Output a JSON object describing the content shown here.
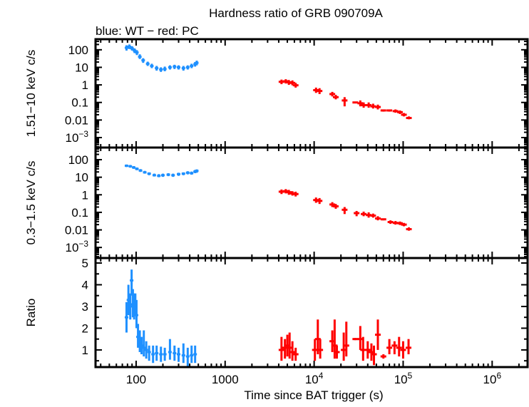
{
  "chart_data": {
    "type": "scatter",
    "title": "Hardness ratio of GRB 090709A",
    "subtitle": "blue: WT − red: PC",
    "xlabel": "Time since BAT trigger (s)",
    "x_scale": "log",
    "xlim": [
      35,
      2500000
    ],
    "x_ticks": [
      {
        "value": 100,
        "label": "100"
      },
      {
        "value": 1000,
        "label": "1000"
      },
      {
        "value": 10000,
        "label": "10",
        "exp": "4"
      },
      {
        "value": 100000,
        "label": "10",
        "exp": "5"
      },
      {
        "value": 1000000,
        "label": "10",
        "exp": "6"
      }
    ],
    "colors": {
      "WT": "#1e90ff",
      "PC": "#ff0000"
    },
    "grid": false,
    "panels": [
      {
        "ylabel": "1.51−10 keV c/s",
        "y_scale": "log",
        "ylim": [
          0.00027,
          400
        ],
        "y_ticks": [
          {
            "value": 100,
            "label": "100"
          },
          {
            "value": 10,
            "label": "10"
          },
          {
            "value": 1,
            "label": "1"
          },
          {
            "value": 0.1,
            "label": "0.1"
          },
          {
            "value": 0.01,
            "label": "0.01"
          },
          {
            "value": 0.001,
            "label": "10",
            "exp": "−3"
          }
        ],
        "series": [
          {
            "mode": "WT",
            "points": [
              [
                78,
                130,
                90,
                180
              ],
              [
                84,
                150,
                110,
                200
              ],
              [
                90,
                120,
                90,
                160
              ],
              [
                96,
                90,
                65,
                120
              ],
              [
                102,
                70,
                50,
                95
              ],
              [
                110,
                40,
                30,
                55
              ],
              [
                120,
                25,
                18,
                33
              ],
              [
                135,
                16,
                12,
                21
              ],
              [
                150,
                12,
                9,
                16
              ],
              [
                170,
                9,
                6.5,
                12
              ],
              [
                190,
                7.5,
                5.5,
                10
              ],
              [
                210,
                8,
                6,
                11
              ],
              [
                240,
                10,
                7.5,
                13
              ],
              [
                270,
                11,
                8,
                14
              ],
              [
                300,
                10,
                7.5,
                13
              ],
              [
                340,
                9,
                6.5,
                12
              ],
              [
                380,
                10,
                7.5,
                13
              ],
              [
                420,
                12,
                9,
                16
              ],
              [
                460,
                15,
                11,
                20
              ],
              [
                480,
                18,
                13,
                24
              ]
            ]
          },
          {
            "mode": "PC",
            "points": [
              [
                4300,
                1.5,
                1.1,
                2.0
              ],
              [
                4800,
                1.6,
                1.2,
                2.1
              ],
              [
                5200,
                1.4,
                1.0,
                1.9
              ],
              [
                5700,
                1.3,
                0.95,
                1.8
              ],
              [
                6200,
                0.95,
                0.7,
                1.3
              ],
              [
                10500,
                0.5,
                0.35,
                0.7
              ],
              [
                11500,
                0.45,
                0.3,
                0.65
              ],
              [
                16000,
                0.3,
                0.22,
                0.4
              ],
              [
                17500,
                0.2,
                0.15,
                0.27
              ],
              [
                22000,
                0.13,
                0.06,
                0.2
              ],
              [
                29000,
                0.1,
                0.09,
                0.11
              ],
              [
                33000,
                0.09,
                0.06,
                0.13
              ],
              [
                36000,
                0.07,
                0.05,
                0.1
              ],
              [
                41000,
                0.07,
                0.05,
                0.1
              ],
              [
                46000,
                0.06,
                0.045,
                0.085
              ],
              [
                52000,
                0.055,
                0.04,
                0.075
              ],
              [
                60000,
                0.035,
                0.03,
                0.04
              ],
              [
                70000,
                0.035,
                0.03,
                0.04
              ],
              [
                82000,
                0.032,
                0.026,
                0.04
              ],
              [
                92000,
                0.028,
                0.022,
                0.035
              ],
              [
                102000,
                0.02,
                0.016,
                0.025
              ],
              [
                116000,
                0.013,
                0.011,
                0.016
              ]
            ]
          }
        ]
      },
      {
        "ylabel": "0.3−1.5 keV c/s",
        "y_scale": "log",
        "ylim": [
          0.00025,
          490
        ],
        "y_ticks": [
          {
            "value": 100,
            "label": "100"
          },
          {
            "value": 10,
            "label": "10"
          },
          {
            "value": 1,
            "label": "1"
          },
          {
            "value": 0.1,
            "label": "0.1"
          },
          {
            "value": 0.01,
            "label": "0.01"
          },
          {
            "value": 0.001,
            "label": "10",
            "exp": "−3"
          }
        ],
        "series": [
          {
            "mode": "WT",
            "points": [
              [
                78,
                45,
                38,
                53
              ],
              [
                86,
                42,
                35,
                50
              ],
              [
                94,
                36,
                30,
                43
              ],
              [
                102,
                30,
                25,
                36
              ],
              [
                112,
                24,
                20,
                29
              ],
              [
                125,
                19,
                16,
                23
              ],
              [
                140,
                16,
                13,
                19
              ],
              [
                160,
                13,
                11,
                16
              ],
              [
                180,
                12,
                10,
                15
              ],
              [
                200,
                13,
                10.5,
                16
              ],
              [
                230,
                14,
                11.5,
                17
              ],
              [
                260,
                13,
                10.5,
                16
              ],
              [
                300,
                15,
                12,
                18
              ],
              [
                340,
                16,
                13,
                19
              ],
              [
                380,
                18,
                14.5,
                22
              ],
              [
                420,
                17,
                14,
                21
              ],
              [
                460,
                21,
                17,
                26
              ],
              [
                480,
                23,
                18,
                28
              ]
            ]
          },
          {
            "mode": "PC",
            "points": [
              [
                4300,
                1.5,
                1.1,
                2.0
              ],
              [
                4800,
                1.6,
                1.2,
                2.1
              ],
              [
                5200,
                1.4,
                1.0,
                1.9
              ],
              [
                5700,
                1.2,
                0.9,
                1.6
              ],
              [
                6200,
                1.1,
                0.8,
                1.5
              ],
              [
                10500,
                0.5,
                0.35,
                0.7
              ],
              [
                11500,
                0.45,
                0.3,
                0.65
              ],
              [
                16000,
                0.28,
                0.2,
                0.38
              ],
              [
                17500,
                0.22,
                0.16,
                0.3
              ],
              [
                22000,
                0.14,
                0.08,
                0.2
              ],
              [
                30000,
                0.09,
                0.06,
                0.12
              ],
              [
                36000,
                0.08,
                0.06,
                0.11
              ],
              [
                41000,
                0.07,
                0.05,
                0.1
              ],
              [
                46000,
                0.065,
                0.05,
                0.085
              ],
              [
                52000,
                0.045,
                0.035,
                0.06
              ],
              [
                60000,
                0.04,
                0.035,
                0.045
              ],
              [
                72000,
                0.028,
                0.022,
                0.035
              ],
              [
                82000,
                0.025,
                0.02,
                0.032
              ],
              [
                92000,
                0.024,
                0.019,
                0.03
              ],
              [
                102000,
                0.02,
                0.016,
                0.025
              ],
              [
                116000,
                0.011,
                0.009,
                0.014
              ]
            ]
          }
        ]
      },
      {
        "ylabel": "Ratio",
        "y_scale": "linear",
        "ylim": [
          0.21,
          5.23
        ],
        "y_ticks": [
          {
            "value": 5,
            "label": "5"
          },
          {
            "value": 4,
            "label": "4"
          },
          {
            "value": 3,
            "label": "3"
          },
          {
            "value": 2,
            "label": "2"
          },
          {
            "value": 1,
            "label": "1"
          }
        ],
        "series": [
          {
            "mode": "WT",
            "points": [
              [
                78,
                2.5,
                1.8,
                3.2
              ],
              [
                82,
                3.3,
                2.6,
                4.0
              ],
              [
                86,
                3.0,
                2.4,
                3.6
              ],
              [
                89,
                4.2,
                3.5,
                4.7
              ],
              [
                92,
                3.1,
                2.5,
                3.8
              ],
              [
                95,
                3.0,
                2.4,
                3.6
              ],
              [
                98,
                3.2,
                2.6,
                3.6
              ],
              [
                101,
                2.6,
                2.0,
                3.3
              ],
              [
                105,
                1.6,
                1.1,
                2.2
              ],
              [
                110,
                1.3,
                0.9,
                1.9
              ],
              [
                115,
                1.2,
                0.8,
                1.6
              ],
              [
                122,
                1.1,
                0.7,
                1.9
              ],
              [
                130,
                1.0,
                0.6,
                1.4
              ],
              [
                140,
                0.9,
                0.5,
                1.2
              ],
              [
                155,
                0.8,
                0.4,
                1.2
              ],
              [
                170,
                0.85,
                0.5,
                1.2
              ],
              [
                190,
                0.8,
                0.45,
                1.15
              ],
              [
                210,
                0.8,
                0.5,
                1.1
              ],
              [
                240,
                0.9,
                0.55,
                1.5
              ],
              [
                270,
                0.85,
                0.5,
                1.2
              ],
              [
                300,
                0.8,
                0.45,
                1.1
              ],
              [
                340,
                0.75,
                0.4,
                1.3
              ],
              [
                380,
                0.7,
                0.25,
                1.1
              ],
              [
                420,
                0.75,
                0.4,
                1.2
              ],
              [
                460,
                0.8,
                0.4,
                1.2
              ]
            ]
          },
          {
            "mode": "PC",
            "points": [
              [
                4300,
                1.0,
                0.5,
                1.6
              ],
              [
                4700,
                1.1,
                0.6,
                1.5
              ],
              [
                5000,
                1.2,
                0.7,
                1.7
              ],
              [
                5300,
                1.1,
                0.6,
                1.8
              ],
              [
                5700,
                0.9,
                0.5,
                1.4
              ],
              [
                6200,
                0.8,
                0.5,
                1.1
              ],
              [
                10200,
                1.0,
                0.5,
                1.5
              ],
              [
                11000,
                1.5,
                0.8,
                2.4
              ],
              [
                11700,
                1.0,
                0.6,
                1.5
              ],
              [
                16000,
                1.4,
                0.9,
                1.9
              ],
              [
                17000,
                1.2,
                0.6,
                2.4
              ],
              [
                18000,
                0.9,
                0.6,
                1.2
              ],
              [
                21500,
                1.0,
                0.5,
                1.8
              ],
              [
                23000,
                1.2,
                0.7,
                2.3
              ],
              [
                29000,
                1.5,
                1.45,
                1.55
              ],
              [
                33000,
                1.5,
                1.0,
                2.1
              ],
              [
                35500,
                1.0,
                0.5,
                1.6
              ],
              [
                40000,
                1.0,
                0.6,
                1.4
              ],
              [
                44000,
                0.9,
                0.5,
                1.3
              ],
              [
                47000,
                0.8,
                0.3,
                1.2
              ],
              [
                52000,
                1.7,
                1.0,
                2.4
              ],
              [
                60000,
                0.7,
                0.6,
                0.8
              ],
              [
                70000,
                1.1,
                0.8,
                1.5
              ],
              [
                80000,
                1.2,
                0.8,
                1.4
              ],
              [
                90000,
                1.1,
                0.7,
                1.6
              ],
              [
                100000,
                1.0,
                0.6,
                1.4
              ],
              [
                115000,
                1.1,
                0.8,
                1.5
              ]
            ]
          }
        ]
      }
    ]
  }
}
